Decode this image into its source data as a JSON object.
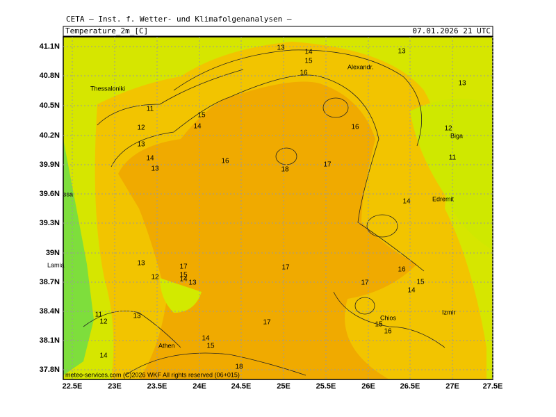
{
  "header": {
    "institute": "CETA — Inst. f. Wetter- und Klimafolgenanalysen —",
    "variable": "Temperature_2m_[C]",
    "valid_time": "07.01.2026 21 UTC"
  },
  "map": {
    "lat_labels": [
      "41.1N",
      "40.8N",
      "40.5N",
      "40.2N",
      "39.9N",
      "39.6N",
      "39.3N",
      "39N",
      "38.7N",
      "38.4N",
      "38.1N",
      "37.8N"
    ],
    "lon_labels": [
      "22.5E",
      "23E",
      "23.5E",
      "24E",
      "24.5E",
      "25E",
      "25.5E",
      "26E",
      "26.5E",
      "27E",
      "27.5E"
    ],
    "places": [
      "Thessaloniki",
      "Alexandr.",
      "Biga",
      "Edremit",
      "ssa",
      "Lamia",
      "Athen",
      "Chios",
      "Izmir"
    ],
    "isotherm_labels": [
      13,
      14,
      15,
      13,
      16,
      13,
      11,
      15,
      14,
      12,
      16,
      12,
      13,
      14,
      13,
      16,
      18,
      17,
      11,
      14,
      13,
      17,
      12,
      15,
      14,
      13,
      17,
      16,
      17,
      15,
      14,
      11,
      12,
      13,
      17,
      15,
      16,
      14,
      15,
      14,
      18
    ],
    "footer": "meteo-services.com  (C)2026 WKF  All rights reserved (06+015)"
  }
}
